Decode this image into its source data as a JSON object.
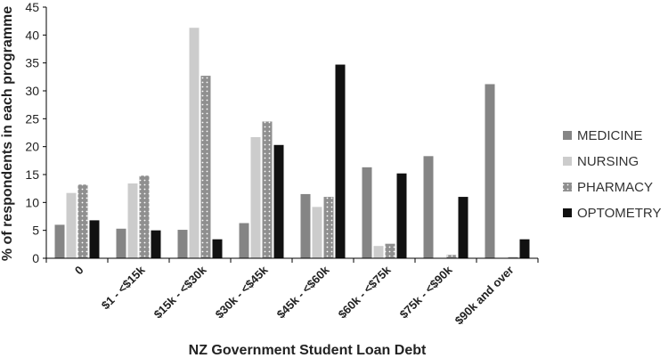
{
  "chart_data": {
    "type": "bar",
    "title": "",
    "xlabel": "NZ Government Student Loan Debt",
    "ylabel": "% of respondents in each programme",
    "ylim": [
      0,
      45
    ],
    "yticks": [
      0,
      5,
      10,
      15,
      20,
      25,
      30,
      35,
      40,
      45
    ],
    "categories": [
      "0",
      "$1 - <$15k",
      "$15k - <$30k",
      "$30k - <$45k",
      "$45k - <$60k",
      "$60k - <$75k",
      "$75k - <$90k",
      "$90k and over"
    ],
    "legend_position": "right",
    "grid": false,
    "series": [
      {
        "name": "MEDICINE",
        "color": "#858585",
        "pattern": "solid",
        "values": [
          6.0,
          5.3,
          5.1,
          6.3,
          11.5,
          16.3,
          18.3,
          31.2
        ]
      },
      {
        "name": "NURSING",
        "color": "#cccccc",
        "pattern": "solid",
        "values": [
          11.7,
          13.4,
          41.3,
          21.7,
          9.2,
          2.2,
          0.0,
          0.0
        ]
      },
      {
        "name": "PHARMACY",
        "color": "#8f8f8f",
        "pattern": "dotted",
        "values": [
          13.2,
          14.8,
          32.7,
          24.5,
          11.0,
          2.6,
          0.6,
          0.2
        ]
      },
      {
        "name": "OPTOMETRY",
        "color": "#111111",
        "pattern": "solid",
        "values": [
          6.8,
          5.0,
          3.4,
          20.3,
          34.7,
          15.2,
          11.0,
          3.4
        ]
      }
    ]
  }
}
